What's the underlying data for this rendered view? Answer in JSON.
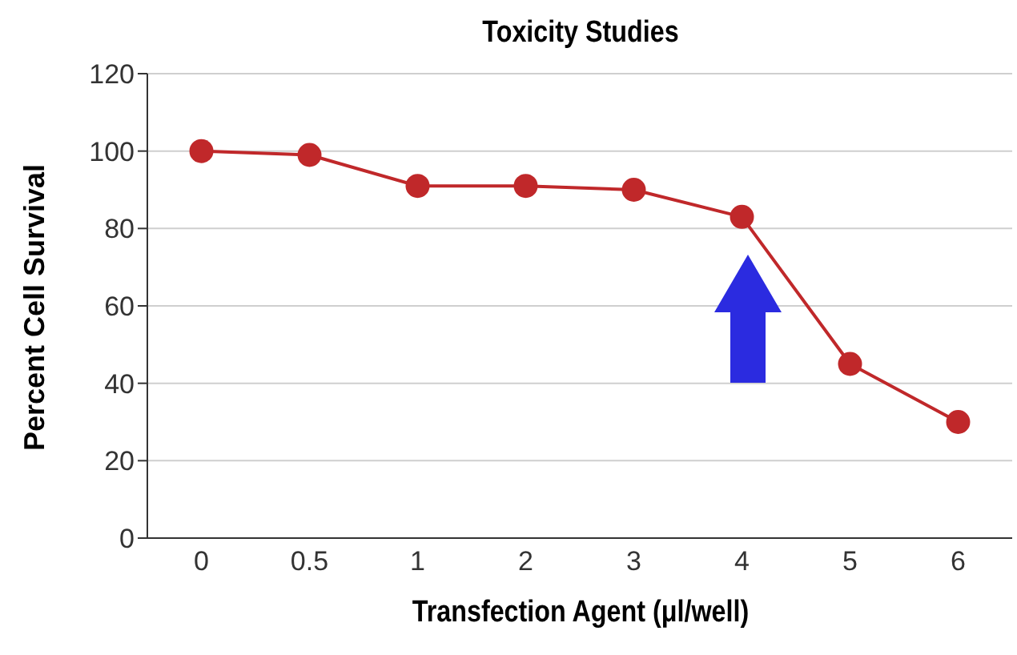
{
  "chart_data": {
    "type": "line",
    "title": "Toxicity Studies",
    "xlabel": "Transfection Agent (μl/well)",
    "ylabel": "Percent Cell Survival",
    "categories": [
      "0",
      "0.5",
      "1",
      "2",
      "3",
      "4",
      "5",
      "6"
    ],
    "series": [
      {
        "color": "#c0282a",
        "values": [
          100,
          99,
          91,
          91,
          90,
          83,
          45,
          30
        ]
      }
    ],
    "ylim": [
      0,
      120
    ],
    "yticks": [
      0,
      20,
      40,
      60,
      80,
      100,
      120
    ],
    "grid": "y",
    "legend": false,
    "marker": "circle",
    "line_style": "solid"
  }
}
